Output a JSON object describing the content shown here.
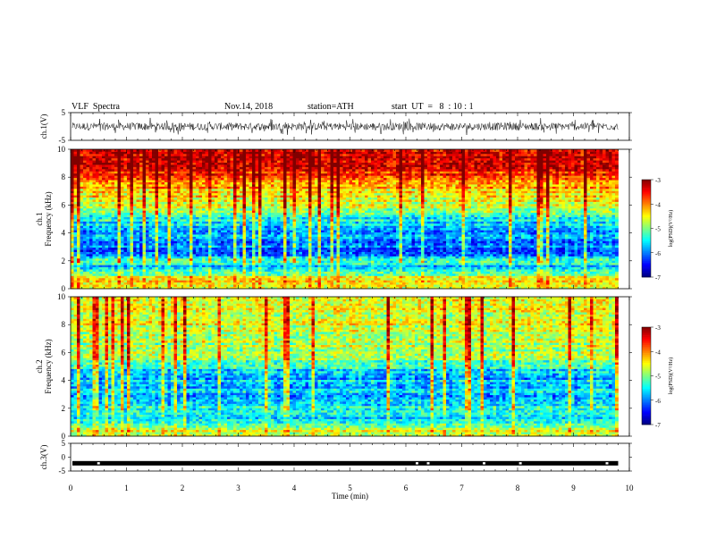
{
  "header": {
    "title": "VLF  Spectra",
    "date": "Nov.14, 2018",
    "station": "station=ATH",
    "start": "start  UT  =   8  : 10 : 1"
  },
  "chart_data": [
    {
      "type": "line",
      "name": "ch1-waveform",
      "ylabel": "ch.1(V)",
      "ylim": [
        -5,
        5
      ],
      "yticks": [
        "5",
        "-5"
      ],
      "baseline": 0,
      "amplitude": 2.5
    },
    {
      "type": "heatmap",
      "name": "ch1-spectrogram",
      "ylabel": "ch.1\nFrequency  (kHz)",
      "ylim": [
        0,
        10
      ],
      "yticks": [
        "0",
        "2",
        "4",
        "6",
        "8",
        "10"
      ],
      "psd_profile": [
        {
          "f": 0.0,
          "v": -4.7
        },
        {
          "f": 0.5,
          "v": -4.2
        },
        {
          "f": 1.0,
          "v": -4.9
        },
        {
          "f": 1.5,
          "v": -5.7
        },
        {
          "f": 2.0,
          "v": -5.3
        },
        {
          "f": 2.5,
          "v": -6.2
        },
        {
          "f": 3.5,
          "v": -6.0
        },
        {
          "f": 4.5,
          "v": -5.8
        },
        {
          "f": 5.5,
          "v": -5.1
        },
        {
          "f": 6.5,
          "v": -4.6
        },
        {
          "f": 7.5,
          "v": -4.1
        },
        {
          "f": 8.5,
          "v": -3.6
        },
        {
          "f": 10.0,
          "v": -3.4
        }
      ],
      "colorbar": {
        "label": "log(PSD)(V²/Hz)",
        "ticks": [
          "-3",
          "-4",
          "-5",
          "-6",
          "-7"
        ],
        "range": [
          -7,
          -3
        ]
      }
    },
    {
      "type": "heatmap",
      "name": "ch2-spectrogram",
      "ylabel": "ch.2\nFrequency  (kHz)",
      "ylim": [
        0,
        10
      ],
      "yticks": [
        "0",
        "2",
        "4",
        "6",
        "8",
        "10"
      ],
      "psd_profile": [
        {
          "f": 0.0,
          "v": -4.9
        },
        {
          "f": 0.5,
          "v": -4.6
        },
        {
          "f": 1.0,
          "v": -5.3
        },
        {
          "f": 1.5,
          "v": -5.6
        },
        {
          "f": 2.0,
          "v": -5.3
        },
        {
          "f": 2.5,
          "v": -5.9
        },
        {
          "f": 3.5,
          "v": -5.7
        },
        {
          "f": 4.5,
          "v": -5.8
        },
        {
          "f": 5.5,
          "v": -5.0
        },
        {
          "f": 6.5,
          "v": -4.8
        },
        {
          "f": 7.5,
          "v": -4.7
        },
        {
          "f": 8.5,
          "v": -4.6
        },
        {
          "f": 10.0,
          "v": -4.6
        }
      ],
      "colorbar": {
        "label": "log(PSD)(V²/Hz)",
        "ticks": [
          "-3",
          "-4",
          "-5",
          "-6",
          "-7"
        ],
        "range": [
          -7,
          -3
        ]
      }
    },
    {
      "type": "line",
      "name": "ch3-signal",
      "ylabel": "ch.3(V)",
      "ylim": [
        -5,
        5
      ],
      "yticks": [
        "5",
        "0",
        "-5"
      ],
      "level": -2.2,
      "gaps_min": [
        0.5,
        6.2,
        6.4,
        7.4,
        8.05,
        9.6
      ]
    }
  ],
  "x_axis": {
    "label": "Time  (min)",
    "xlim": [
      0,
      10
    ],
    "ticks": [
      "0",
      "1",
      "2",
      "3",
      "4",
      "5",
      "6",
      "7",
      "8",
      "9",
      "10"
    ],
    "data_end": 9.8
  }
}
